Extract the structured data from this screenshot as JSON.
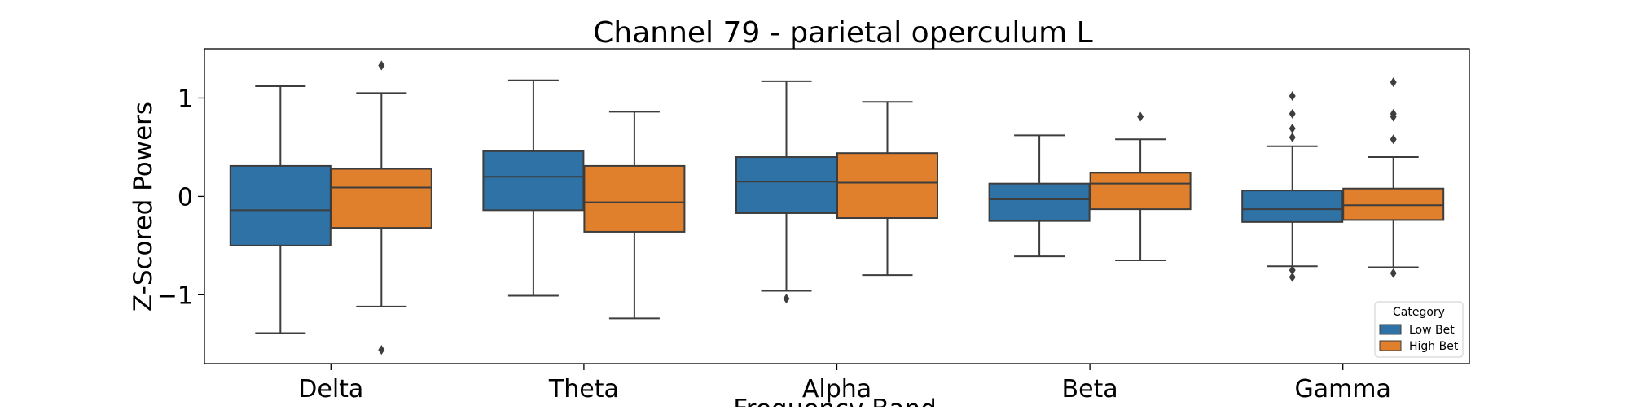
{
  "chart_data": {
    "type": "box",
    "title": "Channel 79 - parietal operculum L",
    "xlabel": "Frequency Band",
    "ylabel": "Z-Scored Powers",
    "categories": [
      "Delta",
      "Theta",
      "Alpha",
      "Beta",
      "Gamma"
    ],
    "ylim": [
      -1.7,
      1.5
    ],
    "yticks": [
      {
        "value": 1,
        "label": "1"
      },
      {
        "value": 0,
        "label": "0"
      },
      {
        "value": -1,
        "label": "−1"
      }
    ],
    "grid": false,
    "legend": {
      "title": "Category",
      "position": "lower-right"
    },
    "series": [
      {
        "name": "Low Bet",
        "color": "#2f72a6",
        "boxes": [
          {
            "whisker_low": -1.39,
            "q1": -0.5,
            "median": -0.14,
            "q3": 0.31,
            "whisker_high": 1.12,
            "outliers": []
          },
          {
            "whisker_low": -1.01,
            "q1": -0.14,
            "median": 0.2,
            "q3": 0.46,
            "whisker_high": 1.18,
            "outliers": []
          },
          {
            "whisker_low": -0.96,
            "q1": -0.17,
            "median": 0.15,
            "q3": 0.4,
            "whisker_high": 1.17,
            "outliers": [
              -1.04
            ]
          },
          {
            "whisker_low": -0.61,
            "q1": -0.25,
            "median": -0.03,
            "q3": 0.13,
            "whisker_high": 0.62,
            "outliers": []
          },
          {
            "whisker_low": -0.71,
            "q1": -0.26,
            "median": -0.13,
            "q3": 0.06,
            "whisker_high": 0.51,
            "outliers": [
              -0.75,
              -0.82,
              0.6,
              0.69,
              0.84,
              1.02
            ]
          }
        ]
      },
      {
        "name": "High Bet",
        "color": "#e07f2c",
        "boxes": [
          {
            "whisker_low": -1.12,
            "q1": -0.32,
            "median": 0.09,
            "q3": 0.28,
            "whisker_high": 1.05,
            "outliers": [
              -1.56,
              1.33
            ]
          },
          {
            "whisker_low": -1.24,
            "q1": -0.36,
            "median": -0.06,
            "q3": 0.31,
            "whisker_high": 0.86,
            "outliers": []
          },
          {
            "whisker_low": -0.8,
            "q1": -0.22,
            "median": 0.14,
            "q3": 0.44,
            "whisker_high": 0.96,
            "outliers": []
          },
          {
            "whisker_low": -0.65,
            "q1": -0.13,
            "median": 0.13,
            "q3": 0.24,
            "whisker_high": 0.58,
            "outliers": [
              0.81
            ]
          },
          {
            "whisker_low": -0.72,
            "q1": -0.24,
            "median": -0.09,
            "q3": 0.08,
            "whisker_high": 0.4,
            "outliers": [
              -0.78,
              0.58,
              0.81,
              0.84,
              1.16
            ]
          }
        ]
      }
    ]
  }
}
